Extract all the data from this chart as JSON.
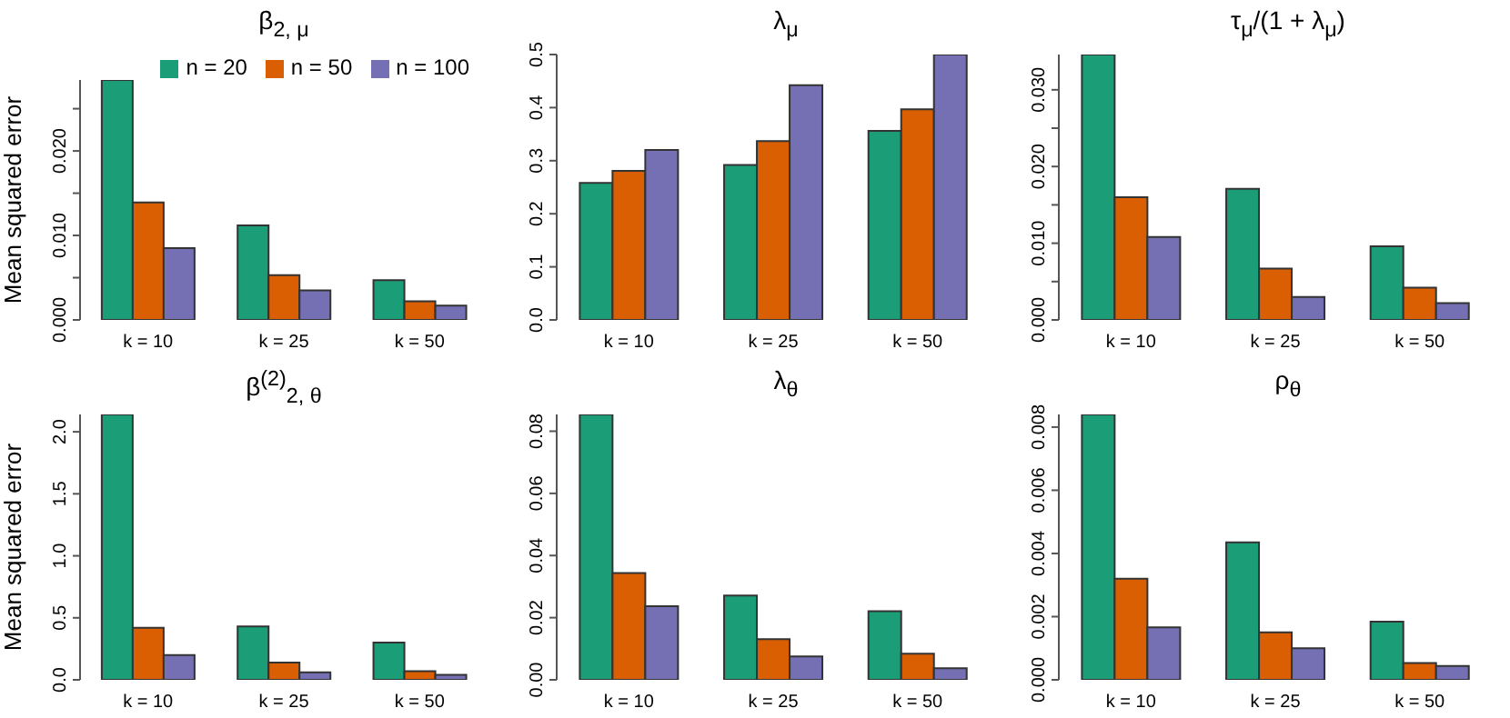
{
  "chart_data": [
    {
      "type": "bar",
      "title": "β$_{2, μ}$",
      "ylabel": "Mean squared error",
      "categories": [
        "k = 10",
        "k = 25",
        "k = 50"
      ],
      "legend": "top right",
      "ylim": [
        0,
        0.0284
      ],
      "yticks": [
        {
          "value": 0,
          "label": "0.000"
        },
        {
          "value": 0.005,
          "label": null
        },
        {
          "value": 0.01,
          "label": "0.010"
        },
        {
          "value": 0.015,
          "label": null
        },
        {
          "value": 0.02,
          "label": "0.020"
        },
        {
          "value": 0.025,
          "label": null
        }
      ],
      "series": [
        {
          "name": "n = 20",
          "color": "#1b9e77",
          "values": [
            0.0284,
            0.0112,
            0.0047
          ]
        },
        {
          "name": "n = 50",
          "color": "#d95f02",
          "values": [
            0.0139,
            0.0053,
            0.0022
          ]
        },
        {
          "name": "n = 100",
          "color": "#7570b3",
          "values": [
            0.0085,
            0.0035,
            0.0017
          ]
        }
      ]
    },
    {
      "type": "bar",
      "title": "λ$_{μ}$",
      "categories": [
        "k = 10",
        "k = 25",
        "k = 50"
      ],
      "ylim": [
        0,
        0.5
      ],
      "yticks": [
        {
          "value": 0,
          "label": "0.0"
        },
        {
          "value": 0.1,
          "label": "0.1"
        },
        {
          "value": 0.2,
          "label": "0.2"
        },
        {
          "value": 0.3,
          "label": "0.3"
        },
        {
          "value": 0.4,
          "label": "0.4"
        },
        {
          "value": 0.5,
          "label": "0.5"
        }
      ],
      "series": [
        {
          "color": "#1b9e77",
          "values": [
            0.258,
            0.292,
            0.356
          ]
        },
        {
          "color": "#d95f02",
          "values": [
            0.281,
            0.337,
            0.397
          ]
        },
        {
          "color": "#7570b3",
          "values": [
            0.32,
            0.442,
            0.5
          ]
        }
      ]
    },
    {
      "type": "bar",
      "title": "τ$_{μ}$/(1 + λ$_{μ}$)",
      "categories": [
        "k = 10",
        "k = 25",
        "k = 50"
      ],
      "ylim": [
        0,
        0.0346
      ],
      "yticks": [
        {
          "value": 0,
          "label": "0.000"
        },
        {
          "value": 0.005,
          "label": null
        },
        {
          "value": 0.01,
          "label": "0.010"
        },
        {
          "value": 0.015,
          "label": null
        },
        {
          "value": 0.02,
          "label": "0.020"
        },
        {
          "value": 0.025,
          "label": null
        },
        {
          "value": 0.03,
          "label": "0.030"
        }
      ],
      "series": [
        {
          "color": "#1b9e77",
          "values": [
            0.0346,
            0.0171,
            0.0096
          ]
        },
        {
          "color": "#d95f02",
          "values": [
            0.016,
            0.0067,
            0.0042
          ]
        },
        {
          "color": "#7570b3",
          "values": [
            0.0108,
            0.003,
            0.0022
          ]
        }
      ]
    },
    {
      "type": "bar",
      "title": "β$^{(2)}$$_{2, θ}$",
      "ylabel": "Mean squared error",
      "categories": [
        "k = 10",
        "k = 25",
        "k = 50"
      ],
      "ylim": [
        0,
        2.14
      ],
      "yticks": [
        {
          "value": 0,
          "label": "0.0"
        },
        {
          "value": 0.5,
          "label": "0.5"
        },
        {
          "value": 1,
          "label": "1.0"
        },
        {
          "value": 1.5,
          "label": "1.5"
        },
        {
          "value": 2,
          "label": "2.0"
        }
      ],
      "series": [
        {
          "color": "#1b9e77",
          "values": [
            2.14,
            0.43,
            0.3
          ]
        },
        {
          "color": "#d95f02",
          "values": [
            0.42,
            0.14,
            0.07
          ]
        },
        {
          "color": "#7570b3",
          "values": [
            0.2,
            0.06,
            0.04
          ]
        }
      ]
    },
    {
      "type": "bar",
      "title": "λ$_{θ}$",
      "categories": [
        "k = 10",
        "k = 25",
        "k = 50"
      ],
      "ylim": [
        0,
        0.0854
      ],
      "yticks": [
        {
          "value": 0,
          "label": "0.00"
        },
        {
          "value": 0.02,
          "label": "0.02"
        },
        {
          "value": 0.04,
          "label": "0.04"
        },
        {
          "value": 0.06,
          "label": "0.06"
        },
        {
          "value": 0.08,
          "label": "0.08"
        }
      ],
      "series": [
        {
          "color": "#1b9e77",
          "values": [
            0.0854,
            0.0271,
            0.0221
          ]
        },
        {
          "color": "#d95f02",
          "values": [
            0.0344,
            0.0131,
            0.0084
          ]
        },
        {
          "color": "#7570b3",
          "values": [
            0.0237,
            0.0075,
            0.0037
          ]
        }
      ]
    },
    {
      "type": "bar",
      "title": "ρ$_{θ}$",
      "categories": [
        "k = 10",
        "k = 25",
        "k = 50"
      ],
      "ylim": [
        0,
        0.0084
      ],
      "yticks": [
        {
          "value": 0,
          "label": "0.000"
        },
        {
          "value": 0.002,
          "label": "0.002"
        },
        {
          "value": 0.004,
          "label": "0.004"
        },
        {
          "value": 0.006,
          "label": "0.006"
        },
        {
          "value": 0.008,
          "label": "0.008"
        }
      ],
      "series": [
        {
          "color": "#1b9e77",
          "values": [
            0.0084,
            0.00435,
            0.00184
          ]
        },
        {
          "color": "#d95f02",
          "values": [
            0.0032,
            0.0015,
            0.00053
          ]
        },
        {
          "color": "#7570b3",
          "values": [
            0.00166,
            0.001,
            0.00044
          ]
        }
      ]
    }
  ]
}
